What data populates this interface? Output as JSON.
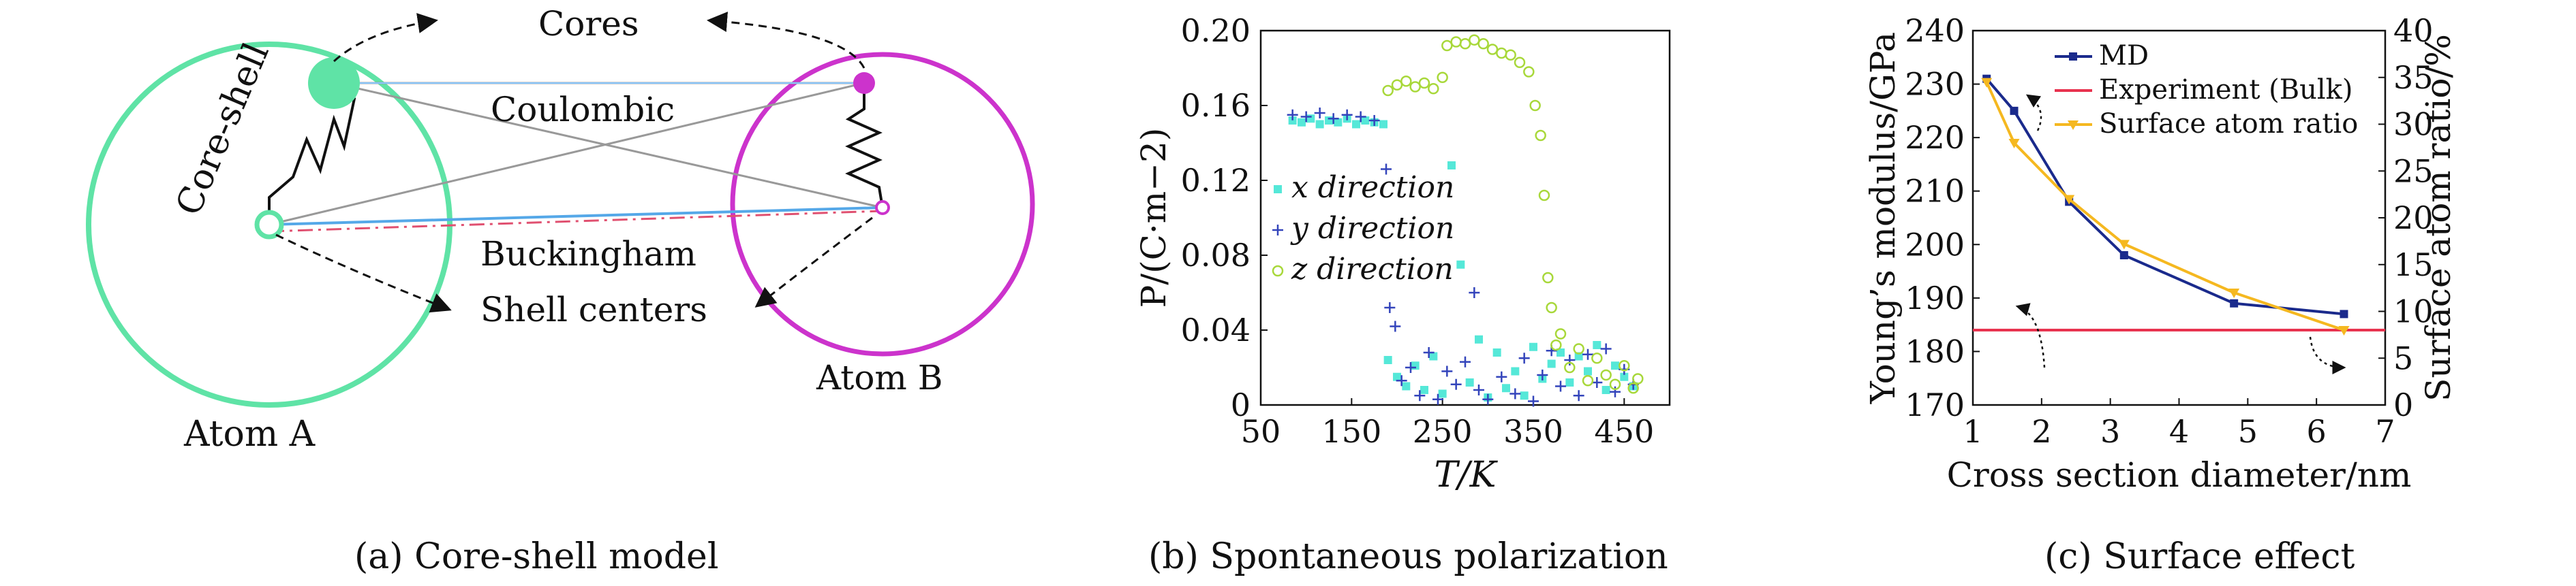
{
  "figure": {
    "panel_a": {
      "caption": "(a) Core-shell model",
      "labels": {
        "cores": "Cores",
        "core_shell": "Core-shell",
        "coulombic": "Coulombic",
        "buckingham": "Buckingham",
        "shell_centers": "Shell centers",
        "atom_a": "Atom A",
        "atom_b": "Atom B"
      },
      "colors": {
        "atom_a": "#5fe3a6",
        "atom_b": "#cc33cc"
      }
    },
    "panel_b": {
      "caption": "(b) Spontaneous polarization"
    },
    "panel_c": {
      "caption": "(c) Surface effect"
    }
  },
  "chart_data": [
    {
      "type": "scatter",
      "panel": "b",
      "title": "",
      "xlabel": "T/K",
      "ylabel": "P/(C·m−2)",
      "xlim": [
        50,
        500
      ],
      "ylim": [
        0,
        0.2
      ],
      "xticks": [
        "50",
        "150",
        "250",
        "350",
        "450"
      ],
      "yticks": [
        "0",
        "0.04",
        "0.08",
        "0.12",
        "0.16",
        "0.20"
      ],
      "legend_position": "middle-left",
      "series": [
        {
          "name": "x direction",
          "color": "#55e8d8",
          "marker": "square",
          "values": [
            [
              85,
              0.152
            ],
            [
              95,
              0.151
            ],
            [
              105,
              0.153
            ],
            [
              115,
              0.15
            ],
            [
              125,
              0.152
            ],
            [
              135,
              0.151
            ],
            [
              145,
              0.153
            ],
            [
              155,
              0.15
            ],
            [
              165,
              0.152
            ],
            [
              175,
              0.151
            ],
            [
              185,
              0.15
            ],
            [
              190,
              0.024
            ],
            [
              200,
              0.015
            ],
            [
              210,
              0.01
            ],
            [
              220,
              0.021
            ],
            [
              230,
              0.008
            ],
            [
              240,
              0.026
            ],
            [
              250,
              0.006
            ],
            [
              260,
              0.128
            ],
            [
              270,
              0.075
            ],
            [
              280,
              0.012
            ],
            [
              290,
              0.035
            ],
            [
              300,
              0.004
            ],
            [
              310,
              0.028
            ],
            [
              320,
              0.009
            ],
            [
              330,
              0.018
            ],
            [
              340,
              0.005
            ],
            [
              350,
              0.031
            ],
            [
              360,
              0.014
            ],
            [
              370,
              0.022
            ],
            [
              380,
              0.028
            ],
            [
              390,
              0.012
            ],
            [
              400,
              0.026
            ],
            [
              410,
              0.018
            ],
            [
              420,
              0.032
            ],
            [
              430,
              0.008
            ],
            [
              440,
              0.021
            ],
            [
              450,
              0.015
            ],
            [
              460,
              0.01
            ]
          ]
        },
        {
          "name": "y direction",
          "color": "#3344bb",
          "marker": "plus",
          "values": [
            [
              85,
              0.155
            ],
            [
              100,
              0.154
            ],
            [
              115,
              0.156
            ],
            [
              130,
              0.153
            ],
            [
              145,
              0.155
            ],
            [
              160,
              0.154
            ],
            [
              175,
              0.152
            ],
            [
              188,
              0.126
            ],
            [
              192,
              0.052
            ],
            [
              198,
              0.042
            ],
            [
              205,
              0.013
            ],
            [
              215,
              0.02
            ],
            [
              225,
              0.005
            ],
            [
              235,
              0.028
            ],
            [
              245,
              0.003
            ],
            [
              255,
              0.018
            ],
            [
              265,
              0.011
            ],
            [
              275,
              0.023
            ],
            [
              285,
              0.06
            ],
            [
              290,
              0.008
            ],
            [
              300,
              0.003
            ],
            [
              315,
              0.015
            ],
            [
              330,
              0.006
            ],
            [
              340,
              0.025
            ],
            [
              350,
              0.002
            ],
            [
              360,
              0.016
            ],
            [
              370,
              0.029
            ],
            [
              380,
              0.01
            ],
            [
              390,
              0.024
            ],
            [
              400,
              0.005
            ],
            [
              410,
              0.027
            ],
            [
              420,
              0.012
            ],
            [
              430,
              0.03
            ],
            [
              440,
              0.007
            ],
            [
              450,
              0.019
            ],
            [
              460,
              0.011
            ]
          ]
        },
        {
          "name": "z direction",
          "color": "#a8d83a",
          "marker": "circle",
          "values": [
            [
              190,
              0.168
            ],
            [
              200,
              0.171
            ],
            [
              210,
              0.173
            ],
            [
              220,
              0.17
            ],
            [
              230,
              0.172
            ],
            [
              240,
              0.169
            ],
            [
              250,
              0.175
            ],
            [
              255,
              0.192
            ],
            [
              265,
              0.194
            ],
            [
              275,
              0.193
            ],
            [
              285,
              0.195
            ],
            [
              295,
              0.193
            ],
            [
              305,
              0.19
            ],
            [
              315,
              0.188
            ],
            [
              325,
              0.187
            ],
            [
              335,
              0.183
            ],
            [
              345,
              0.178
            ],
            [
              352,
              0.16
            ],
            [
              358,
              0.144
            ],
            [
              362,
              0.112
            ],
            [
              366,
              0.068
            ],
            [
              370,
              0.052
            ],
            [
              375,
              0.032
            ],
            [
              380,
              0.038
            ],
            [
              390,
              0.02
            ],
            [
              400,
              0.03
            ],
            [
              410,
              0.013
            ],
            [
              420,
              0.025
            ],
            [
              430,
              0.016
            ],
            [
              440,
              0.011
            ],
            [
              450,
              0.021
            ],
            [
              460,
              0.009
            ],
            [
              465,
              0.014
            ]
          ]
        }
      ]
    },
    {
      "type": "line",
      "panel": "c",
      "title": "",
      "xlabel": "Cross section diameter/nm",
      "ylabel": "Young’s modulus/GPa",
      "ylabel_right": "Surface atom ratio/%",
      "xlim": [
        1,
        7
      ],
      "ylim": [
        170,
        240
      ],
      "ylim_right": [
        0,
        40
      ],
      "xticks": [
        "1",
        "2",
        "3",
        "4",
        "5",
        "6",
        "7"
      ],
      "yticks": [
        "170",
        "180",
        "190",
        "200",
        "210",
        "220",
        "230",
        "240"
      ],
      "yticks_right": [
        "0",
        "5",
        "10",
        "15",
        "20",
        "25",
        "30",
        "35",
        "40"
      ],
      "legend_position": "top-center",
      "series": [
        {
          "name": "MD",
          "axis": "left",
          "color": "#1a2a8c",
          "marker": "square",
          "x": [
            1.2,
            1.6,
            2.4,
            3.2,
            4.8,
            6.4
          ],
          "values": [
            231,
            225,
            208,
            198,
            189,
            187
          ]
        },
        {
          "name": "Experiment (Bulk)",
          "axis": "left",
          "color": "#e8334f",
          "marker": "none",
          "x": [
            1.0,
            7.0
          ],
          "values": [
            184,
            184
          ]
        },
        {
          "name": "Surface atom ratio",
          "axis": "right",
          "color": "#f5b820",
          "marker": "triangle",
          "x": [
            1.2,
            1.6,
            2.4,
            3.2,
            4.8,
            6.4
          ],
          "values": [
            34.5,
            28.0,
            22.0,
            17.2,
            12.0,
            8.0
          ]
        }
      ]
    }
  ]
}
